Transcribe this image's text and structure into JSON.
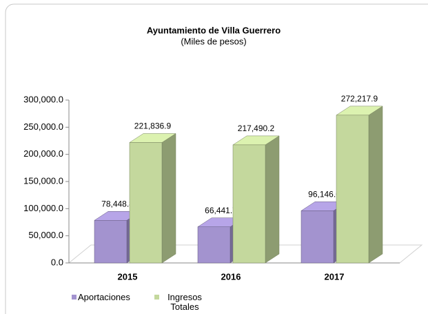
{
  "chart_data": {
    "type": "bar3d",
    "title": "Ayuntamiento de Villa Guerrero",
    "subtitle": "(Miles de pesos)",
    "categories": [
      "2015",
      "2016",
      "2017"
    ],
    "series": [
      {
        "name": "Aportaciones",
        "color": "#a393cf",
        "values": [
          78448.8,
          66441.7,
          96146.6
        ],
        "value_labels": [
          "78,448.8",
          "66,441.7",
          "96,146.6"
        ]
      },
      {
        "name": "Ingresos Totales",
        "color": "#c4d89d",
        "values": [
          221836.9,
          217490.2,
          272217.9
        ],
        "value_labels": [
          "221,836.9",
          "217,490.2",
          "272,217.9"
        ]
      }
    ],
    "ylim": [
      0,
      300000
    ],
    "yticks": [
      {
        "value": 0,
        "label": "0.0"
      },
      {
        "value": 50000,
        "label": "50,000.0"
      },
      {
        "value": 100000,
        "label": "100,000.0"
      },
      {
        "value": 150000,
        "label": "150,000.0"
      },
      {
        "value": 200000,
        "label": "200,000.0"
      },
      {
        "value": 250000,
        "label": "250,000.0"
      },
      {
        "value": 300000,
        "label": "300,000.0"
      }
    ],
    "legend": "bottom-left"
  }
}
